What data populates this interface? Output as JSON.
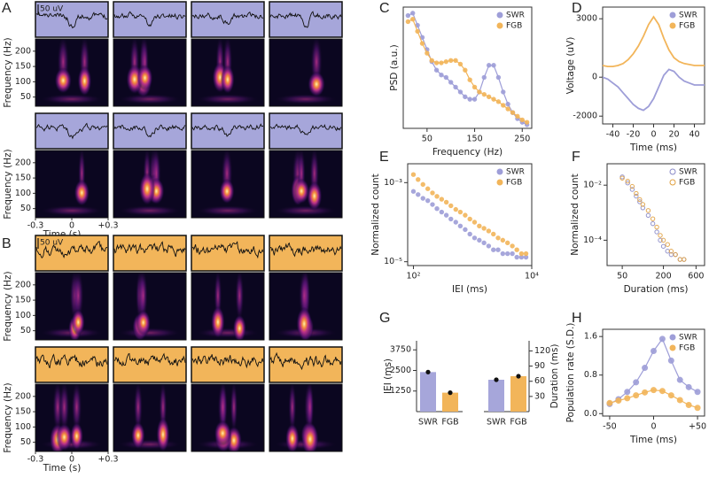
{
  "chart_data": [
    {
      "type": "spectrogram",
      "label": "A",
      "color": "#a6a6da",
      "ylabel": "Frequency (Hz)",
      "xlabel": "Time (s)",
      "scale_bar": "50 uV",
      "ylim": [
        20,
        240
      ],
      "yticks": [
        50,
        100,
        150,
        200
      ],
      "xlim": [
        -0.3,
        0.3
      ],
      "xticks": [
        -0.3,
        0,
        {
          "value": 0.3,
          "label": "+0.3"
        }
      ]
    },
    {
      "type": "spectrogram",
      "label": "B",
      "color": "#f2b55a",
      "ylabel": "Frequency (Hz)",
      "xlabel": "Time (s)",
      "scale_bar": "50 uV",
      "ylim": [
        20,
        240
      ],
      "yticks": [
        50,
        100,
        150,
        200
      ],
      "xlim": [
        -0.3,
        0.3
      ],
      "xticks": [
        -0.3,
        0,
        {
          "value": 0.3,
          "label": "+0.3"
        }
      ]
    },
    {
      "type": "line",
      "label": "C",
      "markers": true,
      "xlabel": "Frequency (Hz)",
      "ylabel": "PSD (a.u.)",
      "legend": "upper right",
      "xlim": [
        0,
        270
      ],
      "xticks": [
        50,
        150,
        250
      ],
      "ylim": [
        0,
        1
      ],
      "x": [
        10,
        20,
        30,
        40,
        50,
        60,
        70,
        80,
        90,
        100,
        110,
        120,
        130,
        140,
        150,
        160,
        170,
        180,
        190,
        200,
        210,
        220,
        230,
        240,
        250,
        260
      ],
      "series": [
        {
          "name": "SWR",
          "color": "#9e9ed8",
          "values": [
            0.93,
            0.95,
            0.85,
            0.75,
            0.65,
            0.55,
            0.48,
            0.44,
            0.42,
            0.38,
            0.34,
            0.3,
            0.26,
            0.24,
            0.24,
            0.3,
            0.42,
            0.52,
            0.52,
            0.42,
            0.3,
            0.2,
            0.13,
            0.08,
            0.05,
            0.03
          ]
        },
        {
          "name": "FGB",
          "color": "#f2b55a",
          "values": [
            0.88,
            0.9,
            0.8,
            0.7,
            0.62,
            0.56,
            0.54,
            0.54,
            0.55,
            0.56,
            0.56,
            0.53,
            0.48,
            0.4,
            0.34,
            0.3,
            0.28,
            0.26,
            0.24,
            0.22,
            0.19,
            0.16,
            0.13,
            0.1,
            0.07,
            0.05
          ]
        }
      ]
    },
    {
      "type": "line",
      "label": "D",
      "xlabel": "Time (ms)",
      "ylabel": "Voltage (uV)",
      "legend": "upper right",
      "xlim": [
        -50,
        50
      ],
      "xticks": [
        -40,
        -20,
        0,
        20,
        40
      ],
      "ylim": [
        -2400,
        3600
      ],
      "yticks": [
        -2000,
        0,
        3000
      ],
      "x": [
        -50,
        -45,
        -40,
        -35,
        -30,
        -25,
        -20,
        -15,
        -10,
        -5,
        0,
        5,
        10,
        15,
        20,
        25,
        30,
        35,
        40,
        45,
        50
      ],
      "series": [
        {
          "name": "SWR",
          "color": "#9e9ed8",
          "values": [
            0,
            -100,
            -300,
            -500,
            -800,
            -1100,
            -1400,
            -1600,
            -1700,
            -1500,
            -1100,
            -500,
            100,
            400,
            300,
            0,
            -200,
            -300,
            -400,
            -400,
            -400
          ]
        },
        {
          "name": "FGB",
          "color": "#f2b55a",
          "values": [
            600,
            550,
            550,
            600,
            700,
            900,
            1200,
            1600,
            2100,
            2700,
            3100,
            2700,
            2000,
            1400,
            1000,
            800,
            700,
            650,
            600,
            600,
            600
          ]
        }
      ]
    },
    {
      "type": "scatter",
      "label": "E",
      "xlabel": "IEI (ms)",
      "ylabel": "Normalized count",
      "legend": "upper right",
      "xlog": true,
      "ylog": true,
      "xlim": [
        80,
        10000
      ],
      "xticks": [
        {
          "value": 100,
          "label": "10²"
        },
        {
          "value": 10000,
          "label": "10⁴"
        }
      ],
      "ylim": [
        8e-06,
        0.003
      ],
      "yticks": [
        {
          "value": 0.001,
          "label": "10⁻³"
        },
        {
          "value": 1e-05,
          "label": "10⁻⁵"
        }
      ],
      "x": [
        100,
        120,
        145,
        175,
        210,
        250,
        300,
        360,
        430,
        520,
        620,
        750,
        900,
        1080,
        1300,
        1560,
        1870,
        2250,
        2700,
        3240,
        3900,
        4700,
        5600,
        6700,
        8000
      ],
      "series": [
        {
          "name": "SWR",
          "color": "#9e9ed8",
          "values": [
            0.0006,
            0.0005,
            0.0004,
            0.00035,
            0.00028,
            0.00022,
            0.00018,
            0.00015,
            0.00012,
            0.0001,
            8e-05,
            6.5e-05,
            5e-05,
            4e-05,
            3.5e-05,
            3e-05,
            2.5e-05,
            2e-05,
            2e-05,
            1.6e-05,
            1.6e-05,
            1.6e-05,
            1.3e-05,
            1.3e-05,
            1.3e-05
          ]
        },
        {
          "name": "FGB",
          "color": "#f2b55a",
          "values": [
            0.0016,
            0.0012,
            0.0009,
            0.0007,
            0.00055,
            0.00045,
            0.00038,
            0.00032,
            0.00026,
            0.00021,
            0.00018,
            0.00015,
            0.00012,
            0.0001,
            8e-05,
            7e-05,
            6e-05,
            5e-05,
            4e-05,
            3.5e-05,
            3e-05,
            2.5e-05,
            2e-05,
            1.6e-05,
            1.6e-05
          ]
        }
      ]
    },
    {
      "type": "scatter",
      "label": "F",
      "open_markers": true,
      "xlabel": "Duration (ms)",
      "ylabel": "Normalized count",
      "legend": "upper right",
      "xlog": true,
      "ylog": true,
      "xlim": [
        30,
        800
      ],
      "xticks": [
        50,
        200,
        600
      ],
      "ylim": [
        1.2e-05,
        0.06
      ],
      "yticks": [
        {
          "value": 0.01,
          "label": "10⁻²"
        },
        {
          "value": 0.0001,
          "label": "10⁻⁴"
        }
      ],
      "x": [
        50,
        60,
        70,
        80,
        90,
        100,
        120,
        140,
        160,
        180,
        200,
        230,
        260,
        300,
        350,
        400
      ],
      "series": [
        {
          "name": "SWR",
          "color": "#8a8ac8",
          "values": [
            0.02,
            0.012,
            0.007,
            0.004,
            0.0025,
            0.0015,
            0.0008,
            0.0004,
            0.0002,
            0.0001,
            6e-05,
            4e-05,
            3e-05,
            3e-05,
            2e-05,
            2e-05
          ]
        },
        {
          "name": "FGB",
          "color": "#e0a040",
          "values": [
            0.018,
            0.014,
            0.009,
            0.005,
            0.003,
            0.002,
            0.0012,
            0.0006,
            0.0003,
            0.00015,
            0.0001,
            7e-05,
            4e-05,
            3e-05,
            2e-05,
            2e-05
          ]
        }
      ]
    },
    {
      "type": "bar",
      "label": "G",
      "categories": [
        "SWR",
        "FGB"
      ],
      "colors": [
        "#a6a6da",
        "#f2b55a"
      ],
      "ylabel": "IEI (ms)",
      "y2label": "Duration (ms)",
      "ylim": [
        0,
        4300
      ],
      "yticks": [
        1250,
        2500,
        3750
      ],
      "y2lim": [
        0,
        140
      ],
      "y2ticks": [
        30,
        60,
        90,
        120
      ],
      "series": [
        {
          "values": [
            2400,
            1150
          ],
          "errors": [
            80,
            60
          ]
        },
        {
          "axis": "y2",
          "values": [
            63,
            70
          ],
          "errors": [
            2,
            2
          ]
        }
      ]
    },
    {
      "type": "line",
      "label": "H",
      "markers": true,
      "xlabel": "Time (ms)",
      "ylabel": "Population rate (S.D.)",
      "legend": "upper right",
      "xlim": [
        -58,
        58
      ],
      "xticks": [
        -50,
        0,
        {
          "value": 50,
          "label": "+50"
        }
      ],
      "ylim": [
        -0.05,
        1.75
      ],
      "yticks": [
        {
          "value": 0,
          "label": "0.0"
        },
        0.8,
        1.6
      ],
      "x": [
        -50,
        -40,
        -30,
        -20,
        -10,
        0,
        10,
        20,
        30,
        40,
        50
      ],
      "series": [
        {
          "name": "SWR",
          "color": "#9e9ed8",
          "values": [
            0.2,
            0.3,
            0.45,
            0.65,
            0.95,
            1.3,
            1.55,
            1.1,
            0.7,
            0.55,
            0.45
          ]
        },
        {
          "name": "FGB",
          "color": "#f2b55a",
          "values": [
            0.22,
            0.27,
            0.32,
            0.38,
            0.44,
            0.49,
            0.47,
            0.38,
            0.28,
            0.18,
            0.12
          ]
        }
      ]
    }
  ]
}
